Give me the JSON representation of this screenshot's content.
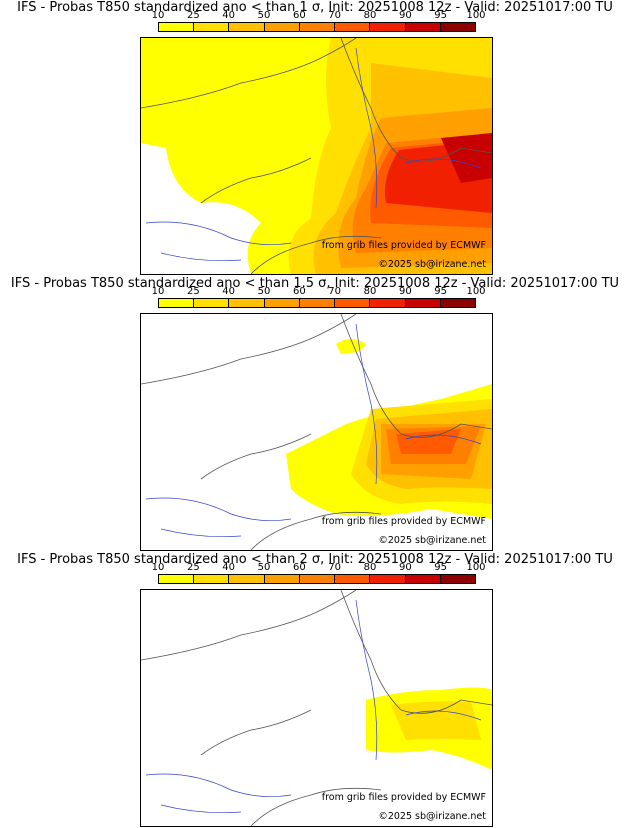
{
  "colorbar": {
    "ticks": [
      "10",
      "25",
      "40",
      "50",
      "60",
      "70",
      "80",
      "90",
      "95",
      "100"
    ],
    "colors": [
      "#ffff00",
      "#ffe000",
      "#ffc000",
      "#ffa000",
      "#ff8000",
      "#ff5a00",
      "#f02000",
      "#c80000",
      "#8c0000"
    ]
  },
  "panels": [
    {
      "title": "IFS - Probas T850  standardized ano < than 1 σ, Init: 20251008 12z - Valid: 20251017:00 TU",
      "coverage": "high"
    },
    {
      "title": "IFS - Probas T850  standardized ano < than 1.5 σ, Init: 20251008 12z - Valid: 20251017:00 TU",
      "coverage": "mid"
    },
    {
      "title": "IFS - Probas T850  standardized ano < than 2 σ, Init: 20251008 12z - Valid: 20251017:00 TU",
      "coverage": "low"
    }
  ],
  "credits": {
    "source": "from grib files provided by ECMWF",
    "copyright": "©2025 sb@irizane.net"
  }
}
